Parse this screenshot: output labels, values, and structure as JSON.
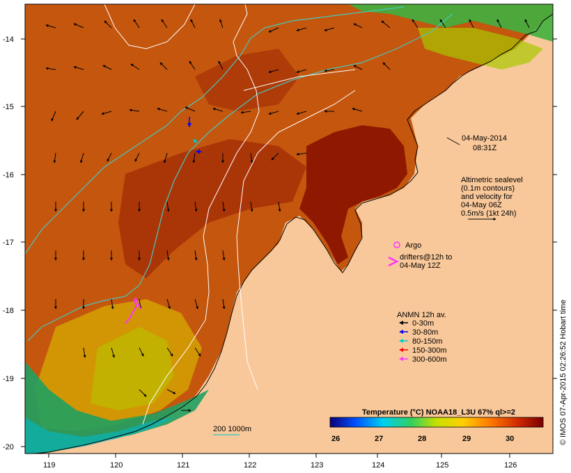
{
  "map": {
    "timestamp_date": "04-May-2014",
    "timestamp_time": "08:31Z",
    "lat_ticks": [
      "-14",
      "-15",
      "-16",
      "-17",
      "-18",
      "-19",
      "-20"
    ],
    "lon_ticks": [
      "119",
      "120",
      "121",
      "122",
      "123",
      "124",
      "125",
      "126"
    ],
    "side_credit": "© IMOS 07-Apr-2015 02:26:52 Hobart time"
  },
  "legend_altimetry": {
    "line1": "Altimetric sealevel",
    "line2": "(0.1m contours)",
    "line3": "and velocity for",
    "line4": "04-May 06Z",
    "line5": "0.5m/s (1kt 24h)"
  },
  "legend_argo": {
    "argo_label": "Argo",
    "drifters_line1": "drifters@12h to",
    "drifters_line2": "04-May 12Z"
  },
  "legend_anmn": {
    "title": "ANMN 12h av.",
    "items": [
      {
        "label": "0-30m",
        "color": "#000000"
      },
      {
        "label": "30-80m",
        "color": "#0000ff"
      },
      {
        "label": "80-150m",
        "color": "#00cccc"
      },
      {
        "label": "150-300m",
        "color": "#ff0000"
      },
      {
        "label": "300-600m",
        "color": "#ff33ff"
      }
    ]
  },
  "isobath_legend": {
    "label": "200  1000m"
  },
  "colorbar": {
    "title": "Temperature (°C) NOAA18_L3U 67% ql>=2",
    "ticks": [
      "26",
      "27",
      "28",
      "29",
      "30"
    ]
  },
  "colors": {
    "land": "#f9c89a",
    "ocean_warm": "#c0500c",
    "ocean_hot": "#8a1000",
    "ocean_cool": "#c8c800",
    "ocean_cold": "#1aa060",
    "isobath": "#48c8c0"
  }
}
